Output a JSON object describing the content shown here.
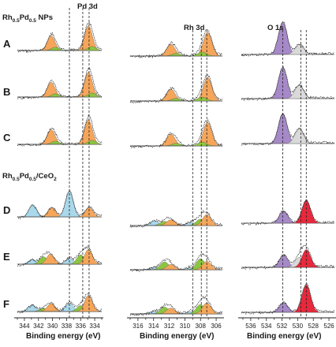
{
  "group_labels": {
    "nps": {
      "pre": "Rh",
      "s1": "0.5",
      "mid": "Pd",
      "s2": "0.5",
      "post": " NPs"
    },
    "ceo2": {
      "pre": "Rh",
      "s1": "0.5",
      "mid": "Pd",
      "s2": "0.5",
      "post": "/CeO",
      "s3": "2"
    }
  },
  "chart_data": [
    {
      "type": "area",
      "title": "Pd 3d",
      "xlabel": "Binding energy (eV)",
      "xlim": [
        345,
        333
      ],
      "x_reversed": true,
      "xticks": [
        344,
        342,
        340,
        338,
        336,
        334
      ],
      "reference_lines": [
        337.6,
        335.7,
        334.8
      ],
      "rows": [
        "A",
        "B",
        "C",
        "D",
        "E",
        "F"
      ],
      "components_by_row": {
        "A": [
          {
            "color": "orange",
            "center": 340.2,
            "height": 0.55
          },
          {
            "color": "green",
            "center": 339.6,
            "height": 0.12
          },
          {
            "color": "orange",
            "center": 334.9,
            "height": 0.92
          },
          {
            "color": "green",
            "center": 334.4,
            "height": 0.15
          }
        ],
        "B": [
          {
            "color": "orange",
            "center": 340.2,
            "height": 0.55
          },
          {
            "color": "green",
            "center": 339.6,
            "height": 0.12
          },
          {
            "color": "orange",
            "center": 334.9,
            "height": 0.92
          },
          {
            "color": "green",
            "center": 334.4,
            "height": 0.15
          }
        ],
        "C": [
          {
            "color": "orange",
            "center": 340.2,
            "height": 0.55
          },
          {
            "color": "green",
            "center": 339.6,
            "height": 0.12
          },
          {
            "color": "orange",
            "center": 334.9,
            "height": 0.92
          },
          {
            "color": "green",
            "center": 334.4,
            "height": 0.15
          }
        ],
        "D": [
          {
            "color": "blue",
            "center": 342.8,
            "height": 0.45
          },
          {
            "color": "orange",
            "center": 340.1,
            "height": 0.35
          },
          {
            "color": "blue",
            "center": 337.6,
            "height": 0.95
          },
          {
            "color": "orange",
            "center": 334.8,
            "height": 0.35
          }
        ],
        "E": [
          {
            "color": "blue",
            "center": 342.9,
            "height": 0.18
          },
          {
            "color": "green",
            "center": 341.3,
            "height": 0.28
          },
          {
            "color": "orange",
            "center": 340.3,
            "height": 0.38
          },
          {
            "color": "blue",
            "center": 337.6,
            "height": 0.22
          },
          {
            "color": "green",
            "center": 336.0,
            "height": 0.35
          },
          {
            "color": "orange",
            "center": 334.9,
            "height": 0.55
          }
        ],
        "F": [
          {
            "color": "blue",
            "center": 342.9,
            "height": 0.25
          },
          {
            "color": "green",
            "center": 341.3,
            "height": 0.12
          },
          {
            "color": "orange",
            "center": 340.2,
            "height": 0.3
          },
          {
            "color": "blue",
            "center": 337.6,
            "height": 0.32
          },
          {
            "color": "green",
            "center": 336.0,
            "height": 0.22
          },
          {
            "color": "orange",
            "center": 334.9,
            "height": 0.6
          }
        ]
      }
    },
    {
      "type": "area",
      "title": "Rh 3d",
      "xlabel": "Binding energy (eV)",
      "xlim": [
        317,
        305.2
      ],
      "x_reversed": true,
      "xticks": [
        316,
        314,
        312,
        310,
        308,
        306
      ],
      "reference_lines": [
        309.0,
        307.9,
        307.2
      ],
      "rows": [
        "A",
        "B",
        "C",
        "D",
        "E",
        "F"
      ],
      "components_by_row": {
        "A": [
          {
            "color": "orange",
            "center": 311.8,
            "height": 0.45
          },
          {
            "color": "green",
            "center": 311.1,
            "height": 0.1
          },
          {
            "color": "orange",
            "center": 307.1,
            "height": 0.9
          },
          {
            "color": "green",
            "center": 307.8,
            "height": 0.15
          }
        ],
        "B": [
          {
            "color": "orange",
            "center": 311.8,
            "height": 0.45
          },
          {
            "color": "green",
            "center": 311.1,
            "height": 0.1
          },
          {
            "color": "orange",
            "center": 307.1,
            "height": 0.9
          },
          {
            "color": "green",
            "center": 307.8,
            "height": 0.15
          }
        ],
        "C": [
          {
            "color": "orange",
            "center": 311.8,
            "height": 0.45
          },
          {
            "color": "green",
            "center": 311.1,
            "height": 0.1
          },
          {
            "color": "orange",
            "center": 307.1,
            "height": 0.9
          },
          {
            "color": "green",
            "center": 307.8,
            "height": 0.15
          }
        ],
        "D": [
          {
            "color": "blue",
            "center": 313.9,
            "height": 0.18
          },
          {
            "color": "green",
            "center": 312.6,
            "height": 0.16
          },
          {
            "color": "orange",
            "center": 311.8,
            "height": 0.22
          },
          {
            "color": "blue",
            "center": 309.2,
            "height": 0.12
          },
          {
            "color": "green",
            "center": 308.0,
            "height": 0.25
          },
          {
            "color": "orange",
            "center": 307.2,
            "height": 0.42
          }
        ],
        "E": [
          {
            "color": "blue",
            "center": 313.9,
            "height": 0.1
          },
          {
            "color": "green",
            "center": 312.6,
            "height": 0.3
          },
          {
            "color": "orange",
            "center": 311.8,
            "height": 0.2
          },
          {
            "color": "blue",
            "center": 309.2,
            "height": 0.08
          },
          {
            "color": "green",
            "center": 308.0,
            "height": 0.42
          },
          {
            "color": "orange",
            "center": 307.2,
            "height": 0.32
          }
        ],
        "F": [
          {
            "color": "blue",
            "center": 313.9,
            "height": 0.1
          },
          {
            "color": "green",
            "center": 312.6,
            "height": 0.26
          },
          {
            "color": "orange",
            "center": 311.8,
            "height": 0.22
          },
          {
            "color": "blue",
            "center": 309.2,
            "height": 0.08
          },
          {
            "color": "green",
            "center": 308.0,
            "height": 0.36
          },
          {
            "color": "orange",
            "center": 307.2,
            "height": 0.42
          }
        ]
      }
    },
    {
      "type": "area",
      "title": "O 1s",
      "xlabel": "Binding energy (eV)",
      "xlim": [
        537.2,
        525.3
      ],
      "x_reversed": true,
      "xticks": [
        536,
        534,
        532,
        530,
        528,
        526
      ],
      "reference_lines": [
        531.9,
        529.6,
        528.9
      ],
      "rows": [
        "A",
        "B",
        "C",
        "D",
        "E",
        "F"
      ],
      "components_by_row": {
        "A": [
          {
            "color": "purple",
            "center": 531.9,
            "height": 0.92
          },
          {
            "color": "gray",
            "center": 529.8,
            "height": 0.28
          }
        ],
        "B": [
          {
            "color": "purple",
            "center": 531.9,
            "height": 0.88
          },
          {
            "color": "gray",
            "center": 529.8,
            "height": 0.38
          }
        ],
        "C": [
          {
            "color": "purple",
            "center": 531.9,
            "height": 0.85
          },
          {
            "color": "gray",
            "center": 529.8,
            "height": 0.42
          }
        ],
        "D": [
          {
            "color": "purple",
            "center": 531.8,
            "height": 0.35
          },
          {
            "color": "red",
            "center": 528.9,
            "height": 0.65
          }
        ],
        "E": [
          {
            "color": "purple",
            "center": 531.8,
            "height": 0.35
          },
          {
            "color": "gray",
            "center": 529.8,
            "height": 0.28
          },
          {
            "color": "red",
            "center": 528.9,
            "height": 0.5
          }
        ],
        "F": [
          {
            "color": "purple",
            "center": 531.8,
            "height": 0.28
          },
          {
            "color": "red",
            "center": 528.9,
            "height": 0.78
          }
        ]
      }
    }
  ],
  "colors": {
    "orange": "#f5a65b",
    "green": "#8cc63f",
    "blue": "#a9d8ea",
    "purple": "#a689c8",
    "gray": "#d9d9d9",
    "red": "#e8283c",
    "line": "#1a1a1a"
  }
}
